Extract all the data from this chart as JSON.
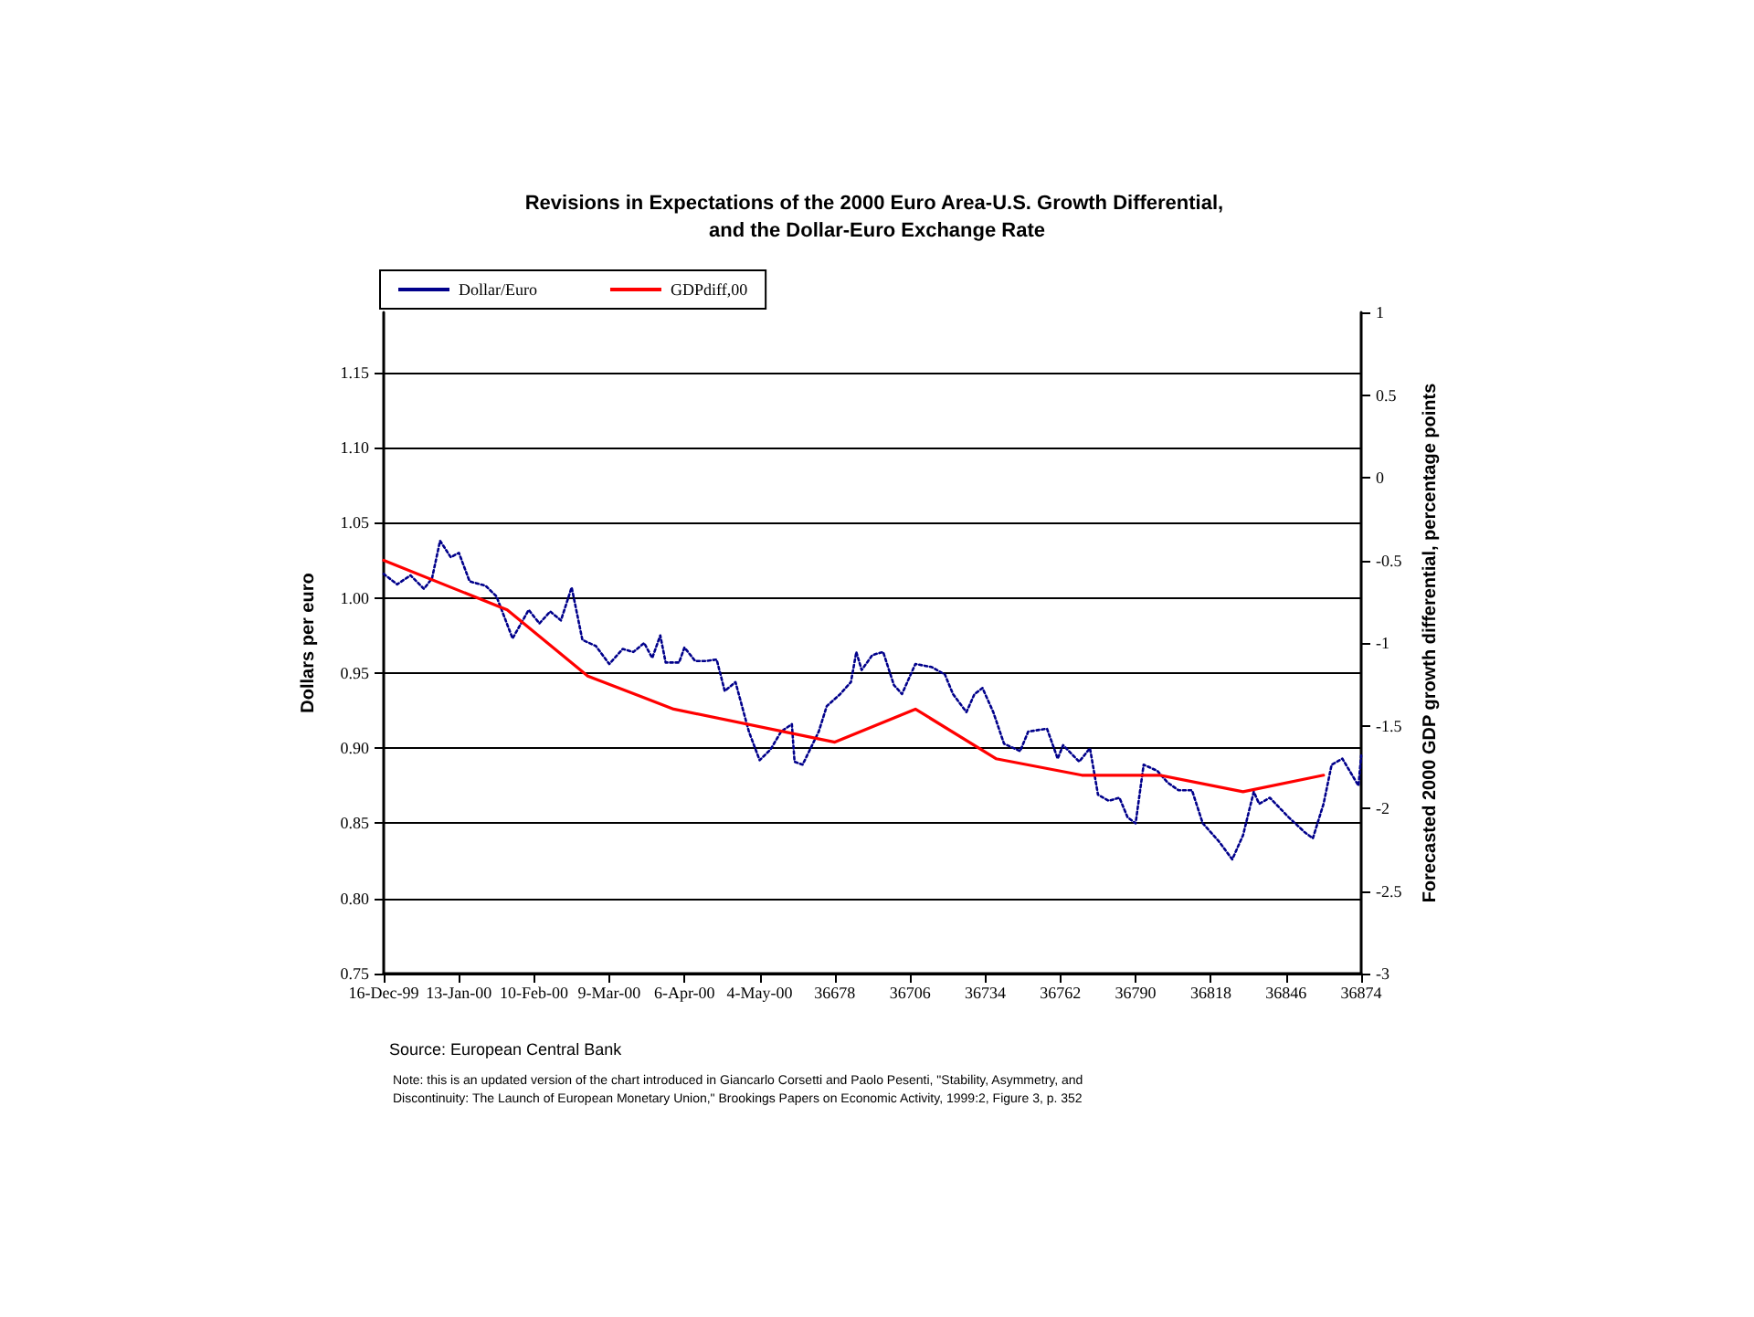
{
  "chart_data": {
    "type": "line",
    "title": "Revisions in Expectations of the 2000 Euro Area-U.S. Growth Differential, and the Dollar-Euro Exchange Rate",
    "ylabel": "Dollars per euro",
    "y2label": "Forecasted 2000 GDP growth differential, percentage points",
    "xlim": [
      36510,
      36874
    ],
    "xticks": [
      {
        "value": 36510,
        "label": "16-Dec-99"
      },
      {
        "value": 36538,
        "label": "13-Jan-00"
      },
      {
        "value": 36566,
        "label": "10-Feb-00"
      },
      {
        "value": 36594,
        "label": "9-Mar-00"
      },
      {
        "value": 36622,
        "label": "6-Apr-00"
      },
      {
        "value": 36650,
        "label": "4-May-00"
      },
      36678,
      36706,
      36734,
      36762,
      36790,
      36818,
      36846,
      36874
    ],
    "ylim": [
      0.75,
      1.19
    ],
    "yticks": [
      {
        "value": 0.75,
        "label": "0.75"
      },
      {
        "value": 0.8,
        "label": "0.80"
      },
      {
        "value": 0.85,
        "label": "0.85"
      },
      {
        "value": 0.9,
        "label": "0.90"
      },
      {
        "value": 0.95,
        "label": "0.95"
      },
      {
        "value": 1.0,
        "label": "1.00"
      },
      {
        "value": 1.05,
        "label": "1.05"
      },
      {
        "value": 1.1,
        "label": "1.10"
      },
      {
        "value": 1.15,
        "label": "1.15"
      }
    ],
    "y2lim": [
      -3,
      1
    ],
    "y2ticks": [
      -3,
      -2.5,
      -2,
      -1.5,
      -1,
      -0.5,
      0,
      0.5,
      1
    ],
    "grid": "y",
    "legend": "top left",
    "marker": "none",
    "series": [
      {
        "name": "Dollar/Euro",
        "color": "#00008b",
        "line_style": "dotted",
        "x": [
          36510,
          36515,
          36520,
          36525,
          36528,
          36531,
          36535,
          36538,
          36542,
          36548,
          36552,
          36558,
          36564,
          36568,
          36572,
          36576,
          36580,
          36584,
          36589,
          36594,
          36599,
          36603,
          36607,
          36610,
          36613,
          36615,
          36620,
          36622,
          36626,
          36630,
          36634,
          36637,
          36641,
          36646,
          36650,
          36654,
          36658,
          36662,
          36663,
          36666,
          36672,
          36675,
          36680,
          36684,
          36686,
          36688,
          36692,
          36696,
          36700,
          36703,
          36708,
          36714,
          36719,
          36722,
          36727,
          36730,
          36733,
          36737,
          36741,
          36747,
          36750,
          36757,
          36761,
          36763,
          36769,
          36773,
          36776,
          36780,
          36784,
          36787,
          36790,
          36793,
          36798,
          36802,
          36806,
          36811,
          36815,
          36821,
          36826,
          36830,
          36834,
          36836,
          36840,
          36847,
          36853,
          36856,
          36860,
          36863,
          36867,
          36873,
          36874
        ],
        "values": [
          1.016,
          1.009,
          1.015,
          1.006,
          1.013,
          1.038,
          1.027,
          1.03,
          1.011,
          1.008,
          1.001,
          0.973,
          0.992,
          0.983,
          0.991,
          0.985,
          1.007,
          0.972,
          0.968,
          0.956,
          0.966,
          0.964,
          0.97,
          0.96,
          0.975,
          0.957,
          0.957,
          0.967,
          0.958,
          0.958,
          0.959,
          0.938,
          0.944,
          0.911,
          0.892,
          0.899,
          0.911,
          0.916,
          0.891,
          0.889,
          0.911,
          0.928,
          0.936,
          0.944,
          0.964,
          0.952,
          0.962,
          0.964,
          0.942,
          0.936,
          0.956,
          0.954,
          0.949,
          0.936,
          0.924,
          0.936,
          0.94,
          0.924,
          0.903,
          0.898,
          0.911,
          0.913,
          0.893,
          0.902,
          0.891,
          0.9,
          0.869,
          0.865,
          0.867,
          0.854,
          0.85,
          0.889,
          0.885,
          0.877,
          0.872,
          0.872,
          0.85,
          0.838,
          0.826,
          0.842,
          0.871,
          0.863,
          0.867,
          0.854,
          0.844,
          0.84,
          0.863,
          0.889,
          0.893,
          0.875,
          0.895
        ]
      },
      {
        "name": "GDPdiff,00",
        "color": "#ff0000",
        "line_style": "solid",
        "axis": "y2",
        "x": [
          36510,
          36556,
          36586,
          36618,
          36678,
          36708,
          36738,
          36770,
          36799,
          36830,
          36860
        ],
        "values": [
          -0.5,
          -0.8,
          -1.2,
          -1.4,
          -1.6,
          -1.4,
          -1.7,
          -1.8,
          -1.8,
          -1.9,
          -1.8
        ]
      }
    ],
    "annotations": [
      "Source: European Central Bank",
      "Note: this is an updated version of the chart introduced in Giancarlo Corsetti and Paolo Pesenti, \"Stability, Asymmetry, and Discontinuity: The Launch of European Monetary Union,\" Brookings Papers on Economic Activity, 1999:2, Figure 3, p. 352"
    ]
  }
}
